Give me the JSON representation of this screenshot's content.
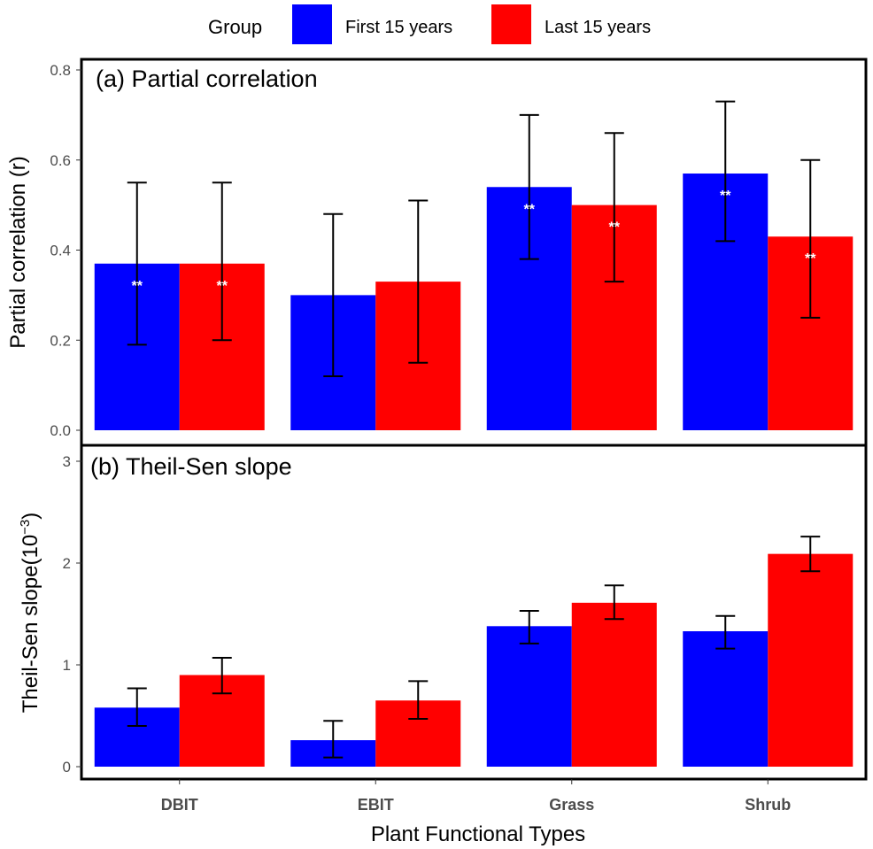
{
  "legend": {
    "title": "Group",
    "items": [
      {
        "label": "First 15 years",
        "color": "#0000FF"
      },
      {
        "label": "Last 15 years",
        "color": "#FF0000"
      }
    ]
  },
  "xlabel": "Plant Functional Types",
  "chart_data": [
    {
      "type": "bar",
      "title": "(a) Partial correlation",
      "ylabel": "Partial correlation (r)",
      "ylim": [
        0,
        0.8
      ],
      "yticks": [
        "0.0",
        "0.2",
        "0.4",
        "0.6",
        "0.8"
      ],
      "categories": [
        "DBIT",
        "EBIT",
        "Grass",
        "Shrub"
      ],
      "series": [
        {
          "name": "First 15 years",
          "color": "#0000FF",
          "values": [
            0.37,
            0.3,
            0.54,
            0.57
          ],
          "error_low": [
            0.19,
            0.12,
            0.38,
            0.42
          ],
          "error_high": [
            0.55,
            0.48,
            0.7,
            0.73
          ],
          "labels": [
            "**",
            "",
            "**",
            "**"
          ]
        },
        {
          "name": "Last 15 years",
          "color": "#FF0000",
          "values": [
            0.37,
            0.33,
            0.5,
            0.43
          ],
          "error_low": [
            0.2,
            0.15,
            0.33,
            0.25
          ],
          "error_high": [
            0.55,
            0.51,
            0.66,
            0.6
          ],
          "labels": [
            "**",
            "",
            "**",
            "**"
          ]
        }
      ]
    },
    {
      "type": "bar",
      "title": "(b) Theil-Sen slope",
      "ylabel": "Theil-Sen slope(10",
      "ylabel_sup": "−3",
      "ylabel_close": ")",
      "ylim": [
        0,
        3
      ],
      "yticks": [
        "0",
        "1",
        "2",
        "3"
      ],
      "categories": [
        "DBIT",
        "EBIT",
        "Grass",
        "Shrub"
      ],
      "series": [
        {
          "name": "First 15 years",
          "color": "#0000FF",
          "values": [
            0.58,
            0.26,
            1.38,
            1.33
          ],
          "error_low": [
            0.4,
            0.09,
            1.21,
            1.16
          ],
          "error_high": [
            0.77,
            0.45,
            1.53,
            1.48
          ]
        },
        {
          "name": "Last 15 years",
          "color": "#FF0000",
          "values": [
            0.9,
            0.65,
            1.61,
            2.09
          ],
          "error_low": [
            0.72,
            0.47,
            1.45,
            1.92
          ],
          "error_high": [
            1.07,
            0.84,
            1.78,
            2.26
          ]
        }
      ]
    }
  ]
}
